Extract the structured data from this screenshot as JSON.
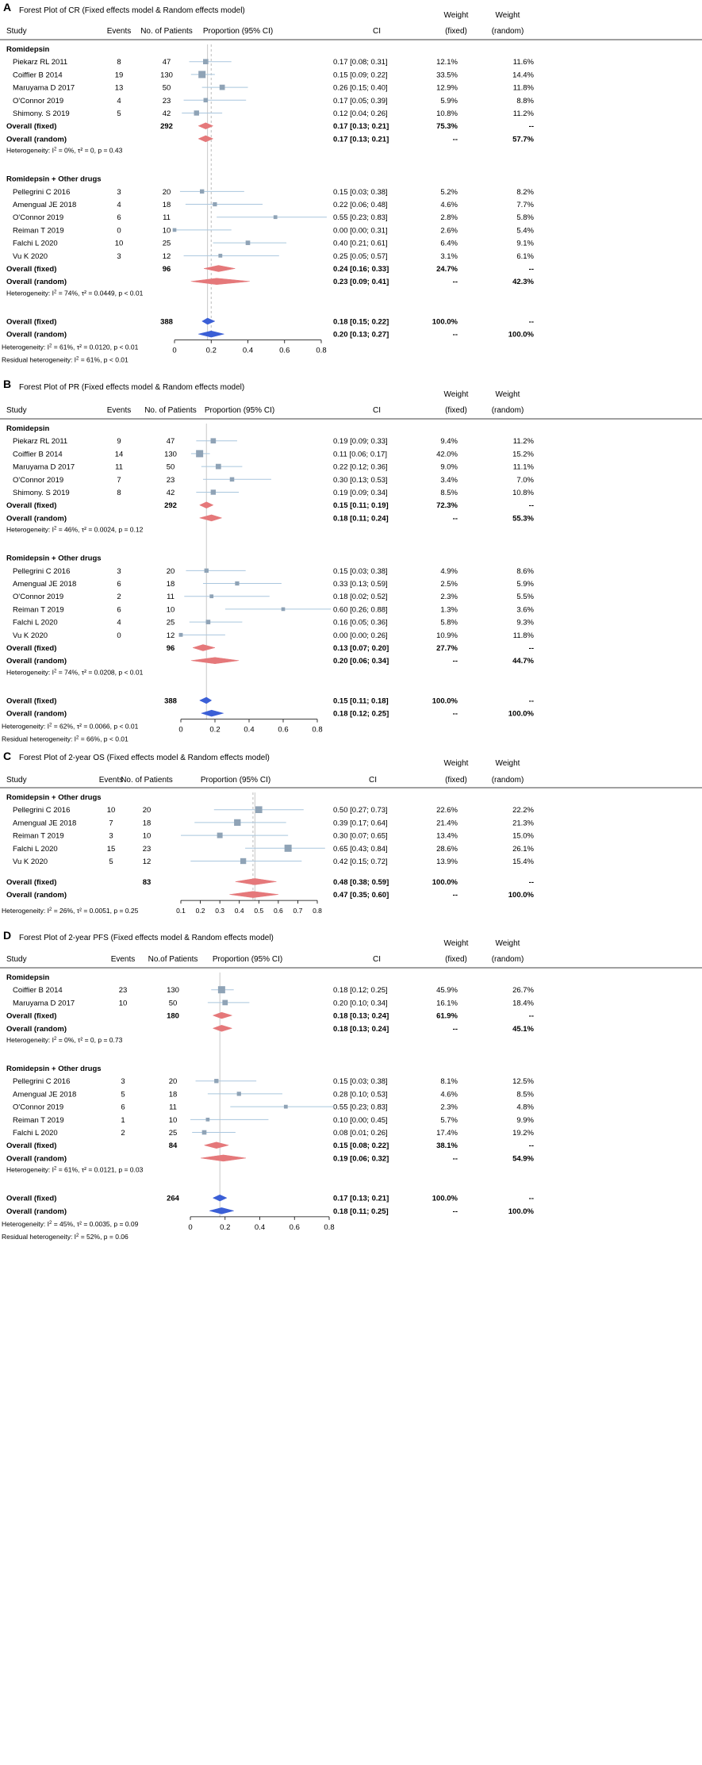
{
  "colors": {
    "square": "#8fa3b6",
    "ci_line": "#a9c6de",
    "fixed_diamond": "#e5787a",
    "overall_diamond": "#3b5fd6",
    "ref_line": "#c8c8c8",
    "dashed_line": "#bbbbbb"
  },
  "headers": {
    "study": "Study",
    "events": "Events",
    "no_patients": "No. of Patients",
    "no_patients_alt": "No.of Patients",
    "proportion": "Proportion (95% CI)",
    "ci": "CI",
    "weight": "Weight",
    "fixed": "(fixed)",
    "random": "(random)"
  },
  "chart_data": [
    {
      "letter": "A",
      "type": "forest",
      "title": "Forest Plot of CR (Fixed effects model & Random effects model)",
      "xlim": [
        0,
        0.8
      ],
      "ticks": [
        "0",
        "0.2",
        "0.4",
        "0.6",
        "0.8"
      ],
      "tick_values": [
        0,
        0.2,
        0.4,
        0.6,
        0.8
      ],
      "dashed_at": 0.2,
      "solid_at": 0.18,
      "groups": [
        {
          "name": "Romidepsin",
          "studies": [
            {
              "study": "Piekarz RL 2011",
              "events": "8",
              "n": "47",
              "est": 0.17,
              "lo": 0.08,
              "hi": 0.31,
              "ci": "0.17  [0.08; 0.31]",
              "wf": "12.1%",
              "wr": "11.6%"
            },
            {
              "study": "Coiffier B 2014",
              "events": "19",
              "n": "130",
              "est": 0.15,
              "lo": 0.09,
              "hi": 0.22,
              "ci": "0.15  [0.09; 0.22]",
              "wf": "33.5%",
              "wr": "14.4%"
            },
            {
              "study": "Maruyama D 2017",
              "events": "13",
              "n": "50",
              "est": 0.26,
              "lo": 0.15,
              "hi": 0.4,
              "ci": "0.26  [0.15; 0.40]",
              "wf": "12.9%",
              "wr": "11.8%"
            },
            {
              "study": "O'Connor 2019",
              "events": "4",
              "n": "23",
              "est": 0.17,
              "lo": 0.05,
              "hi": 0.39,
              "ci": "0.17  [0.05; 0.39]",
              "wf": "5.9%",
              "wr": "8.8%"
            },
            {
              "study": "Shimony. S 2019",
              "events": "5",
              "n": "42",
              "est": 0.12,
              "lo": 0.04,
              "hi": 0.26,
              "ci": "0.12  [0.04; 0.26]",
              "wf": "10.8%",
              "wr": "11.2%"
            }
          ],
          "fixed": {
            "label": "Overall (fixed)",
            "n": "292",
            "est": 0.17,
            "lo": 0.13,
            "hi": 0.21,
            "ci": "0.17  [0.13; 0.21]",
            "wf": "75.3%",
            "wr": "--"
          },
          "random": {
            "label": "Overall (random)",
            "est": 0.17,
            "lo": 0.13,
            "hi": 0.21,
            "ci": "0.17  [0.13; 0.21]",
            "wf": "--",
            "wr": "57.7%"
          },
          "het": "Heterogeneity: I² = 0%,  τ² = 0, p = 0.43"
        },
        {
          "name": "Romidepsin + Other drugs",
          "studies": [
            {
              "study": "Pellegrini C 2016",
              "events": "3",
              "n": "20",
              "est": 0.15,
              "lo": 0.03,
              "hi": 0.38,
              "ci": "0.15  [0.03; 0.38]",
              "wf": "5.2%",
              "wr": "8.2%"
            },
            {
              "study": "Amengual JE 2018",
              "events": "4",
              "n": "18",
              "est": 0.22,
              "lo": 0.06,
              "hi": 0.48,
              "ci": "0.22  [0.06; 0.48]",
              "wf": "4.6%",
              "wr": "7.7%"
            },
            {
              "study": "O'Connor 2019",
              "events": "6",
              "n": "11",
              "est": 0.55,
              "lo": 0.23,
              "hi": 0.83,
              "ci": "0.55  [0.23; 0.83]",
              "wf": "2.8%",
              "wr": "5.8%"
            },
            {
              "study": "Reiman T 2019",
              "events": "0",
              "n": "10",
              "est": 0.0,
              "lo": 0.0,
              "hi": 0.31,
              "ci": "0.00  [0.00; 0.31]",
              "wf": "2.6%",
              "wr": "5.4%"
            },
            {
              "study": "Falchi L 2020",
              "events": "10",
              "n": "25",
              "est": 0.4,
              "lo": 0.21,
              "hi": 0.61,
              "ci": "0.40  [0.21; 0.61]",
              "wf": "6.4%",
              "wr": "9.1%"
            },
            {
              "study": "Vu K 2020",
              "events": "3",
              "n": "12",
              "est": 0.25,
              "lo": 0.05,
              "hi": 0.57,
              "ci": "0.25  [0.05; 0.57]",
              "wf": "3.1%",
              "wr": "6.1%"
            }
          ],
          "fixed": {
            "label": "Overall (fixed)",
            "n": "96",
            "est": 0.24,
            "lo": 0.16,
            "hi": 0.33,
            "ci": "0.24  [0.16; 0.33]",
            "wf": "24.7%",
            "wr": "--"
          },
          "random": {
            "label": "Overall (random)",
            "est": 0.23,
            "lo": 0.09,
            "hi": 0.41,
            "ci": "0.23  [0.09; 0.41]",
            "wf": "--",
            "wr": "42.3%"
          },
          "het": "Heterogeneity: I² = 74%,  τ² = 0.0449, p < 0.01"
        }
      ],
      "overall": {
        "fixed": {
          "label": "Overall (fixed)",
          "n": "388",
          "est": 0.18,
          "lo": 0.15,
          "hi": 0.22,
          "ci": "0.18  [0.15; 0.22]",
          "wf": "100.0%",
          "wr": "--"
        },
        "random": {
          "label": "Overall (random)",
          "est": 0.2,
          "lo": 0.13,
          "hi": 0.27,
          "ci": "0.20  [0.13; 0.27]",
          "wf": "--",
          "wr": "100.0%"
        },
        "het": "Heterogeneity: I² = 61%,  τ² = 0.0120, p < 0.01",
        "resid": "Residual heterogeneity: I² = 61%, p < 0.01"
      }
    },
    {
      "letter": "B",
      "type": "forest",
      "title": "Forest Plot of PR (Fixed effects model & Random effects model)",
      "xlim": [
        0,
        0.8
      ],
      "ticks": [
        "0",
        "0.2",
        "0.4",
        "0.6",
        "0.8"
      ],
      "tick_values": [
        0,
        0.2,
        0.4,
        0.6,
        0.8
      ],
      "dashed_at": null,
      "solid_at": 0.15,
      "groups": [
        {
          "name": "Romidepsin",
          "studies": [
            {
              "study": "Piekarz RL 2011",
              "events": "9",
              "n": "47",
              "est": 0.19,
              "lo": 0.09,
              "hi": 0.33,
              "ci": "0.19  [0.09; 0.33]",
              "wf": "9.4%",
              "wr": "11.2%"
            },
            {
              "study": "Coiffier B 2014",
              "events": "14",
              "n": "130",
              "est": 0.11,
              "lo": 0.06,
              "hi": 0.17,
              "ci": "0.11  [0.06; 0.17]",
              "wf": "42.0%",
              "wr": "15.2%"
            },
            {
              "study": "Maruyama D 2017",
              "events": "11",
              "n": "50",
              "est": 0.22,
              "lo": 0.12,
              "hi": 0.36,
              "ci": "0.22  [0.12; 0.36]",
              "wf": "9.0%",
              "wr": "11.1%"
            },
            {
              "study": "O'Connor 2019",
              "events": "7",
              "n": "23",
              "est": 0.3,
              "lo": 0.13,
              "hi": 0.53,
              "ci": "0.30  [0.13; 0.53]",
              "wf": "3.4%",
              "wr": "7.0%"
            },
            {
              "study": "Shimony. S 2019",
              "events": "8",
              "n": "42",
              "est": 0.19,
              "lo": 0.09,
              "hi": 0.34,
              "ci": "0.19  [0.09; 0.34]",
              "wf": "8.5%",
              "wr": "10.8%"
            }
          ],
          "fixed": {
            "label": "Overall (fixed)",
            "n": "292",
            "est": 0.15,
            "lo": 0.11,
            "hi": 0.19,
            "ci": "0.15  [0.11; 0.19]",
            "wf": "72.3%",
            "wr": "--"
          },
          "random": {
            "label": "Overall (random)",
            "est": 0.18,
            "lo": 0.11,
            "hi": 0.24,
            "ci": "0.18  [0.11; 0.24]",
            "wf": "--",
            "wr": "55.3%"
          },
          "het": "Heterogeneity: I² = 46%,  τ² = 0.0024, p = 0.12"
        },
        {
          "name": "Romidepsin + Other drugs",
          "studies": [
            {
              "study": "Pellegrini C 2016",
              "events": "3",
              "n": "20",
              "est": 0.15,
              "lo": 0.03,
              "hi": 0.38,
              "ci": "0.15  [0.03; 0.38]",
              "wf": "4.9%",
              "wr": "8.6%"
            },
            {
              "study": "Amengual JE 2018",
              "events": "6",
              "n": "18",
              "est": 0.33,
              "lo": 0.13,
              "hi": 0.59,
              "ci": "0.33  [0.13; 0.59]",
              "wf": "2.5%",
              "wr": "5.9%"
            },
            {
              "study": "O'Connor 2019",
              "events": "2",
              "n": "11",
              "est": 0.18,
              "lo": 0.02,
              "hi": 0.52,
              "ci": "0.18  [0.02; 0.52]",
              "wf": "2.3%",
              "wr": "5.5%"
            },
            {
              "study": "Reiman T 2019",
              "events": "6",
              "n": "10",
              "est": 0.6,
              "lo": 0.26,
              "hi": 0.88,
              "ci": "0.60  [0.26; 0.88]",
              "wf": "1.3%",
              "wr": "3.6%"
            },
            {
              "study": "Falchi L 2020",
              "events": "4",
              "n": "25",
              "est": 0.16,
              "lo": 0.05,
              "hi": 0.36,
              "ci": "0.16  [0.05; 0.36]",
              "wf": "5.8%",
              "wr": "9.3%"
            },
            {
              "study": "Vu K 2020",
              "events": "0",
              "n": "12",
              "est": 0.0,
              "lo": 0.0,
              "hi": 0.26,
              "ci": "0.00  [0.00; 0.26]",
              "wf": "10.9%",
              "wr": "11.8%"
            }
          ],
          "fixed": {
            "label": "Overall (fixed)",
            "n": "96",
            "est": 0.13,
            "lo": 0.07,
            "hi": 0.2,
            "ci": "0.13  [0.07; 0.20]",
            "wf": "27.7%",
            "wr": "--"
          },
          "random": {
            "label": "Overall (random)",
            "est": 0.2,
            "lo": 0.06,
            "hi": 0.34,
            "ci": "0.20  [0.06; 0.34]",
            "wf": "--",
            "wr": "44.7%"
          },
          "het": "Heterogeneity: I² = 74%,  τ² = 0.0208, p < 0.01"
        }
      ],
      "overall": {
        "fixed": {
          "label": "Overall (fixed)",
          "n": "388",
          "est": 0.15,
          "lo": 0.11,
          "hi": 0.18,
          "ci": "0.15  [0.11; 0.18]",
          "wf": "100.0%",
          "wr": "--"
        },
        "random": {
          "label": "Overall (random)",
          "est": 0.18,
          "lo": 0.12,
          "hi": 0.25,
          "ci": "0.18  [0.12; 0.25]",
          "wf": "--",
          "wr": "100.0%"
        },
        "het": "Heterogeneity: I² = 62%,  τ² = 0.0066, p < 0.01",
        "resid": "Residual heterogeneity: I² = 66%, p < 0.01"
      }
    },
    {
      "letter": "C",
      "type": "forest",
      "title": "Forest Plot of 2-year OS (Fixed effects model & Random effects model)",
      "xlim": [
        0.1,
        0.8
      ],
      "ticks": [
        "0.1",
        "0.2",
        "0.3",
        "0.4",
        "0.5",
        "0.6",
        "0.7",
        "0.8"
      ],
      "tick_values": [
        0.1,
        0.2,
        0.3,
        0.4,
        0.5,
        0.6,
        0.7,
        0.8
      ],
      "dashed_at": 0.47,
      "solid_at": 0.48,
      "groups": [
        {
          "name": "Romidepsin + Other drugs",
          "studies": [
            {
              "study": "Pellegrini C 2016",
              "events": "10",
              "n": "20",
              "est": 0.5,
              "lo": 0.27,
              "hi": 0.73,
              "ci": "0.50  [0.27; 0.73]",
              "wf": "22.6%",
              "wr": "22.2%"
            },
            {
              "study": "Amengual JE 2018",
              "events": "7",
              "n": "18",
              "est": 0.39,
              "lo": 0.17,
              "hi": 0.64,
              "ci": "0.39  [0.17; 0.64]",
              "wf": "21.4%",
              "wr": "21.3%"
            },
            {
              "study": "Reiman T 2019",
              "events": "3",
              "n": "10",
              "est": 0.3,
              "lo": 0.07,
              "hi": 0.65,
              "ci": "0.30  [0.07; 0.65]",
              "wf": "13.4%",
              "wr": "15.0%"
            },
            {
              "study": "Falchi L 2020",
              "events": "15",
              "n": "23",
              "est": 0.65,
              "lo": 0.43,
              "hi": 0.84,
              "ci": "0.65  [0.43; 0.84]",
              "wf": "28.6%",
              "wr": "26.1%"
            },
            {
              "study": "Vu K 2020",
              "events": "5",
              "n": "12",
              "est": 0.42,
              "lo": 0.15,
              "hi": 0.72,
              "ci": "0.42  [0.15; 0.72]",
              "wf": "13.9%",
              "wr": "15.4%"
            }
          ]
        }
      ],
      "overall": {
        "fixed": {
          "label": "Overall (fixed)",
          "n": "83",
          "est": 0.48,
          "lo": 0.38,
          "hi": 0.59,
          "ci": "0.48  [0.38; 0.59]",
          "wf": "100.0%",
          "wr": "--"
        },
        "random": {
          "label": "Overall (random)",
          "est": 0.47,
          "lo": 0.35,
          "hi": 0.6,
          "ci": "0.47  [0.35; 0.60]",
          "wf": "--",
          "wr": "100.0%"
        },
        "het": "Heterogeneity: I² = 26%,  τ² = 0.0051, p = 0.25",
        "resid": ""
      }
    },
    {
      "letter": "D",
      "type": "forest",
      "title": "Forest Plot of 2-year PFS (Fixed effects model & Random effects model)",
      "xlim": [
        0,
        0.8
      ],
      "ticks": [
        "0",
        "0.2",
        "0.4",
        "0.6",
        "0.8"
      ],
      "tick_values": [
        0,
        0.2,
        0.4,
        0.6,
        0.8
      ],
      "dashed_at": null,
      "solid_at": 0.17,
      "groups": [
        {
          "name": "Romidepsin",
          "studies": [
            {
              "study": "Coiffier B 2014",
              "events": "23",
              "n": "130",
              "est": 0.18,
              "lo": 0.12,
              "hi": 0.25,
              "ci": "0.18  [0.12; 0.25]",
              "wf": "45.9%",
              "wr": "26.7%"
            },
            {
              "study": "Maruyama D 2017",
              "events": "10",
              "n": "50",
              "est": 0.2,
              "lo": 0.1,
              "hi": 0.34,
              "ci": "0.20  [0.10; 0.34]",
              "wf": "16.1%",
              "wr": "18.4%"
            }
          ],
          "fixed": {
            "label": "Overall (fixed)",
            "n": "180",
            "est": 0.18,
            "lo": 0.13,
            "hi": 0.24,
            "ci": "0.18  [0.13; 0.24]",
            "wf": "61.9%",
            "wr": "--"
          },
          "random": {
            "label": "Overall (random)",
            "est": 0.18,
            "lo": 0.13,
            "hi": 0.24,
            "ci": "0.18  [0.13; 0.24]",
            "wf": "--",
            "wr": "45.1%"
          },
          "het": "Heterogeneity: I² = 0%,  τ² = 0, p = 0.73"
        },
        {
          "name": "Romidepsin + Other drugs",
          "studies": [
            {
              "study": "Pellegrini C 2016",
              "events": "3",
              "n": "20",
              "est": 0.15,
              "lo": 0.03,
              "hi": 0.38,
              "ci": "0.15  [0.03; 0.38]",
              "wf": "8.1%",
              "wr": "12.5%"
            },
            {
              "study": "Amengual JE 2018",
              "events": "5",
              "n": "18",
              "est": 0.28,
              "lo": 0.1,
              "hi": 0.53,
              "ci": "0.28  [0.10; 0.53]",
              "wf": "4.6%",
              "wr": "8.5%"
            },
            {
              "study": "O'Connor 2019",
              "events": "6",
              "n": "11",
              "est": 0.55,
              "lo": 0.23,
              "hi": 0.83,
              "ci": "0.55  [0.23; 0.83]",
              "wf": "2.3%",
              "wr": "4.8%"
            },
            {
              "study": "Reiman T 2019",
              "events": "1",
              "n": "10",
              "est": 0.1,
              "lo": 0.0,
              "hi": 0.45,
              "ci": "0.10  [0.00; 0.45]",
              "wf": "5.7%",
              "wr": "9.9%"
            },
            {
              "study": "Falchi L 2020",
              "events": "2",
              "n": "25",
              "est": 0.08,
              "lo": 0.01,
              "hi": 0.26,
              "ci": "0.08  [0.01; 0.26]",
              "wf": "17.4%",
              "wr": "19.2%"
            }
          ],
          "fixed": {
            "label": "Overall (fixed)",
            "n": "84",
            "est": 0.15,
            "lo": 0.08,
            "hi": 0.22,
            "ci": "0.15  [0.08; 0.22]",
            "wf": "38.1%",
            "wr": "--"
          },
          "random": {
            "label": "Overall (random)",
            "est": 0.19,
            "lo": 0.06,
            "hi": 0.32,
            "ci": "0.19  [0.06; 0.32]",
            "wf": "--",
            "wr": "54.9%"
          },
          "het": "Heterogeneity: I² = 61%,  τ² = 0.0121, p = 0.03"
        }
      ],
      "overall": {
        "fixed": {
          "label": "Overall (fixed)",
          "n": "264",
          "est": 0.17,
          "lo": 0.13,
          "hi": 0.21,
          "ci": "0.17  [0.13; 0.21]",
          "wf": "100.0%",
          "wr": "--"
        },
        "random": {
          "label": "Overall (random)",
          "est": 0.18,
          "lo": 0.11,
          "hi": 0.25,
          "ci": "0.18  [0.11; 0.25]",
          "wf": "--",
          "wr": "100.0%"
        },
        "het": "Heterogeneity: I² = 45%,  τ² = 0.0035, p = 0.09",
        "resid": "Residual heterogeneity: I² = 52%, p = 0.06"
      }
    }
  ]
}
